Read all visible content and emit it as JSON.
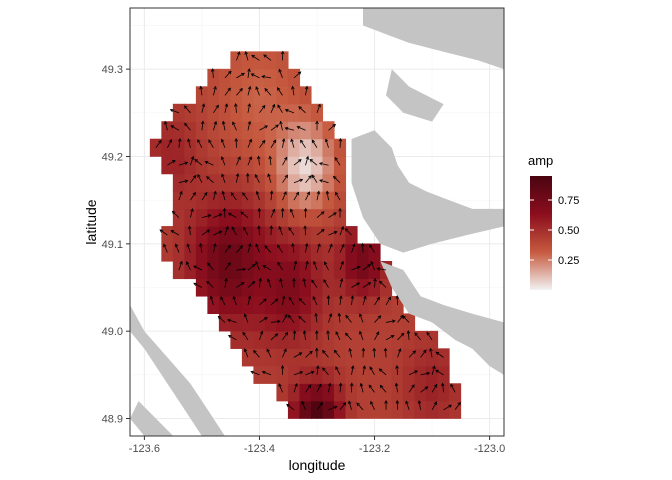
{
  "chart_data": {
    "type": "vector-field-map",
    "xlabel": "longitude",
    "ylabel": "latitude",
    "xlim": [
      -123.625,
      -122.975
    ],
    "ylim": [
      48.88,
      49.37
    ],
    "x_ticks": [
      -123.6,
      -123.4,
      -123.2,
      -123.0
    ],
    "x_tick_labels": [
      "-123.6",
      "-123.4",
      "-123.2",
      "-123.0"
    ],
    "y_ticks": [
      48.9,
      49.0,
      49.1,
      49.2,
      49.3
    ],
    "y_tick_labels": [
      "48.9",
      "49.0",
      "49.1",
      "49.2",
      "49.3"
    ],
    "grid": true,
    "legend": {
      "title": "amp",
      "position": "right",
      "range": [
        0.0,
        0.95
      ],
      "breaks": [
        0.25,
        0.5,
        0.75
      ],
      "break_labels": [
        "0.25",
        "0.50",
        "0.75"
      ],
      "colors": [
        "#f2f2f2",
        "#c65a3f",
        "#8b0e1e",
        "#4a0410"
      ]
    },
    "land_color": "#c4c4c4",
    "grid_step": 0.02,
    "region_outline": [
      [
        -123.58,
        49.23
      ],
      [
        -123.52,
        49.27
      ],
      [
        -123.47,
        49.3
      ],
      [
        -123.42,
        49.32
      ],
      [
        -123.38,
        49.33
      ],
      [
        -123.34,
        49.31
      ],
      [
        -123.32,
        49.29
      ],
      [
        -123.3,
        49.27
      ],
      [
        -123.28,
        49.25
      ],
      [
        -123.26,
        49.22
      ],
      [
        -123.25,
        49.19
      ],
      [
        -123.26,
        49.16
      ],
      [
        -123.25,
        49.13
      ],
      [
        -123.23,
        49.11
      ],
      [
        -123.2,
        49.09
      ],
      [
        -123.17,
        49.07
      ],
      [
        -123.16,
        49.04
      ],
      [
        -123.14,
        49.02
      ],
      [
        -123.11,
        49.0
      ],
      [
        -123.08,
        48.97
      ],
      [
        -123.05,
        48.93
      ],
      [
        -123.05,
        48.91
      ],
      [
        -123.1,
        48.91
      ],
      [
        -123.15,
        48.91
      ],
      [
        -123.2,
        48.9
      ],
      [
        -123.25,
        48.9
      ],
      [
        -123.3,
        48.89
      ],
      [
        -123.35,
        48.9
      ],
      [
        -123.38,
        48.93
      ],
      [
        -123.42,
        48.96
      ],
      [
        -123.46,
        49.0
      ],
      [
        -123.5,
        49.04
      ],
      [
        -123.54,
        49.07
      ],
      [
        -123.57,
        49.1
      ],
      [
        -123.55,
        49.14
      ],
      [
        -123.56,
        49.18
      ],
      [
        -123.58,
        49.21
      ]
    ],
    "amplitude_hotspots": [
      {
        "lon": -123.45,
        "lat": 49.08,
        "amp": 0.8,
        "radius": 0.07
      },
      {
        "lon": -123.35,
        "lat": 49.05,
        "amp": 0.7,
        "radius": 0.06
      },
      {
        "lon": -123.55,
        "lat": 49.2,
        "amp": 0.55,
        "radius": 0.05
      },
      {
        "lon": -123.3,
        "lat": 48.9,
        "amp": 0.95,
        "radius": 0.04
      },
      {
        "lon": -123.22,
        "lat": 49.08,
        "amp": 0.75,
        "radius": 0.04
      },
      {
        "lon": -123.1,
        "lat": 48.94,
        "amp": 0.55,
        "radius": 0.05
      },
      {
        "lon": -123.4,
        "lat": 49.27,
        "amp": 0.3,
        "radius": 0.08
      },
      {
        "lon": -123.32,
        "lat": 49.19,
        "amp": 0.05,
        "radius": 0.05
      }
    ],
    "land": [
      [
        [
          -123.22,
          49.37
        ],
        [
          -123.22,
          49.35
        ],
        [
          -123.18,
          49.34
        ],
        [
          -123.14,
          49.33
        ],
        [
          -123.08,
          49.32
        ],
        [
          -123.02,
          49.31
        ],
        [
          -122.975,
          49.3
        ],
        [
          -122.975,
          49.37
        ]
      ],
      [
        [
          -123.17,
          49.3
        ],
        [
          -123.14,
          49.28
        ],
        [
          -123.08,
          49.26
        ],
        [
          -123.1,
          49.24
        ],
        [
          -123.15,
          49.25
        ],
        [
          -123.18,
          49.27
        ]
      ],
      [
        [
          -123.0,
          49.36
        ],
        [
          -122.99,
          49.32
        ],
        [
          -122.975,
          49.32
        ],
        [
          -122.975,
          49.36
        ]
      ],
      [
        [
          -123.24,
          49.22
        ],
        [
          -123.2,
          49.23
        ],
        [
          -123.17,
          49.21
        ],
        [
          -123.16,
          49.19
        ],
        [
          -123.14,
          49.17
        ],
        [
          -123.11,
          49.16
        ],
        [
          -123.07,
          49.15
        ],
        [
          -123.03,
          49.14
        ],
        [
          -122.975,
          49.14
        ],
        [
          -122.975,
          49.12
        ],
        [
          -123.04,
          49.11
        ],
        [
          -123.1,
          49.1
        ],
        [
          -123.15,
          49.09
        ],
        [
          -123.19,
          49.1
        ],
        [
          -123.22,
          49.13
        ],
        [
          -123.24,
          49.17
        ]
      ],
      [
        [
          -123.19,
          49.08
        ],
        [
          -123.15,
          49.07
        ],
        [
          -123.12,
          49.04
        ],
        [
          -123.08,
          49.03
        ],
        [
          -123.03,
          49.02
        ],
        [
          -122.975,
          49.01
        ],
        [
          -122.975,
          48.95
        ],
        [
          -123.0,
          48.96
        ],
        [
          -123.03,
          48.98
        ],
        [
          -123.06,
          48.99
        ],
        [
          -123.1,
          49.01
        ],
        [
          -123.14,
          49.02
        ],
        [
          -123.17,
          49.05
        ]
      ],
      [
        [
          -123.625,
          49.03
        ],
        [
          -123.6,
          49.0
        ],
        [
          -123.56,
          48.97
        ],
        [
          -123.52,
          48.94
        ],
        [
          -123.49,
          48.91
        ],
        [
          -123.46,
          48.88
        ],
        [
          -123.5,
          48.88
        ],
        [
          -123.53,
          48.91
        ],
        [
          -123.57,
          48.95
        ],
        [
          -123.6,
          48.98
        ],
        [
          -123.625,
          49.0
        ]
      ],
      [
        [
          -123.61,
          48.92
        ],
        [
          -123.58,
          48.9
        ],
        [
          -123.55,
          48.88
        ],
        [
          -123.6,
          48.88
        ],
        [
          -123.625,
          48.9
        ]
      ]
    ]
  }
}
